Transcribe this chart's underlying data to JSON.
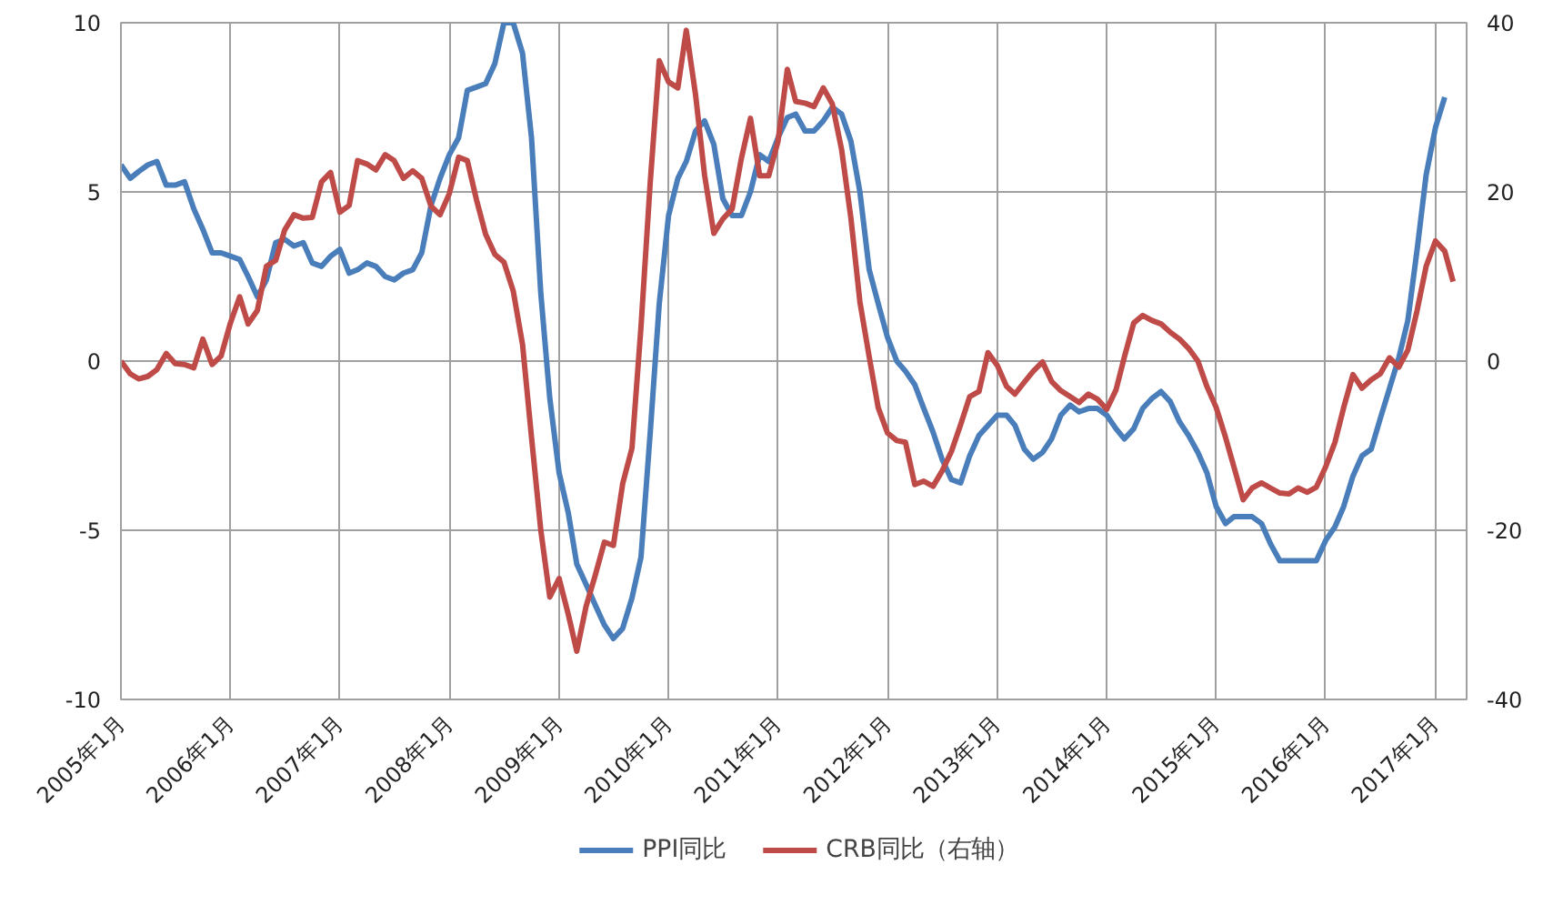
{
  "chart_data": {
    "type": "line",
    "x": [
      "2005-01",
      "2005-02",
      "2005-03",
      "2005-04",
      "2005-05",
      "2005-06",
      "2005-07",
      "2005-08",
      "2005-09",
      "2005-10",
      "2005-11",
      "2005-12",
      "2006-01",
      "2006-02",
      "2006-03",
      "2006-04",
      "2006-05",
      "2006-06",
      "2006-07",
      "2006-08",
      "2006-09",
      "2006-10",
      "2006-11",
      "2006-12",
      "2007-01",
      "2007-02",
      "2007-03",
      "2007-04",
      "2007-05",
      "2007-06",
      "2007-07",
      "2007-08",
      "2007-09",
      "2007-10",
      "2007-11",
      "2007-12",
      "2008-01",
      "2008-02",
      "2008-03",
      "2008-04",
      "2008-05",
      "2008-06",
      "2008-07",
      "2008-08",
      "2008-09",
      "2008-10",
      "2008-11",
      "2008-12",
      "2009-01",
      "2009-02",
      "2009-03",
      "2009-04",
      "2009-05",
      "2009-06",
      "2009-07",
      "2009-08",
      "2009-09",
      "2009-10",
      "2009-11",
      "2009-12",
      "2010-01",
      "2010-02",
      "2010-03",
      "2010-04",
      "2010-05",
      "2010-06",
      "2010-07",
      "2010-08",
      "2010-09",
      "2010-10",
      "2010-11",
      "2010-12",
      "2011-01",
      "2011-02",
      "2011-03",
      "2011-04",
      "2011-05",
      "2011-06",
      "2011-07",
      "2011-08",
      "2011-09",
      "2011-10",
      "2011-11",
      "2011-12",
      "2012-01",
      "2012-02",
      "2012-03",
      "2012-04",
      "2012-05",
      "2012-06",
      "2012-07",
      "2012-08",
      "2012-09",
      "2012-10",
      "2012-11",
      "2012-12",
      "2013-01",
      "2013-02",
      "2013-03",
      "2013-04",
      "2013-05",
      "2013-06",
      "2013-07",
      "2013-08",
      "2013-09",
      "2013-10",
      "2013-11",
      "2013-12",
      "2014-01",
      "2014-02",
      "2014-03",
      "2014-04",
      "2014-05",
      "2014-06",
      "2014-07",
      "2014-08",
      "2014-09",
      "2014-10",
      "2014-11",
      "2014-12",
      "2015-01",
      "2015-02",
      "2015-03",
      "2015-04",
      "2015-05",
      "2015-06",
      "2015-07",
      "2015-08",
      "2015-09",
      "2015-10",
      "2015-11",
      "2015-12",
      "2016-01",
      "2016-02",
      "2016-03",
      "2016-04",
      "2016-05",
      "2016-06",
      "2016-07",
      "2016-08",
      "2016-09",
      "2016-10",
      "2016-11",
      "2016-12",
      "2017-01",
      "2017-02",
      "2017-03"
    ],
    "xlim": [
      "2005-01",
      "2017-04-15"
    ],
    "xticks": [
      {
        "value": "2005-01",
        "label": "2005年1月"
      },
      {
        "value": "2006-01",
        "label": "2006年1月"
      },
      {
        "value": "2007-01",
        "label": "2007年1月"
      },
      {
        "value": "2008-01",
        "label": "2008年1月"
      },
      {
        "value": "2009-01",
        "label": "2009年1月"
      },
      {
        "value": "2010-01",
        "label": "2010年1月"
      },
      {
        "value": "2011-01",
        "label": "2011年1月"
      },
      {
        "value": "2012-01",
        "label": "2012年1月"
      },
      {
        "value": "2013-01",
        "label": "2013年1月"
      },
      {
        "value": "2014-01",
        "label": "2014年1月"
      },
      {
        "value": "2015-01",
        "label": "2015年1月"
      },
      {
        "value": "2016-01",
        "label": "2016年1月"
      },
      {
        "value": "2017-01",
        "label": "2017年1月"
      }
    ],
    "ylim": [
      -10,
      10
    ],
    "yticks": [
      -10,
      -5,
      0,
      5,
      10
    ],
    "y2lim": [
      -40,
      40
    ],
    "y2ticks": [
      -40,
      -20,
      0,
      20,
      40
    ],
    "grid": true,
    "legend": "bottom",
    "marker": "none",
    "line_style": "solid",
    "series": [
      {
        "name": "PPI同比",
        "color": "#4a7ebb",
        "values": [
          5.8,
          5.4,
          5.6,
          5.8,
          5.9,
          5.2,
          5.2,
          5.3,
          4.5,
          3.9,
          3.2,
          3.2,
          3.1,
          3.0,
          2.5,
          1.9,
          2.4,
          3.5,
          3.6,
          3.4,
          3.5,
          2.9,
          2.8,
          3.1,
          3.3,
          2.6,
          2.7,
          2.9,
          2.8,
          2.5,
          2.4,
          2.6,
          2.7,
          3.2,
          4.6,
          5.4,
          6.1,
          6.6,
          8.0,
          8.1,
          8.2,
          8.8,
          10.0,
          10.0,
          9.1,
          6.6,
          2.0,
          -1.1,
          -3.3,
          -4.5,
          -6.0,
          -6.6,
          -7.2,
          -7.8,
          -8.2,
          -7.9,
          -7.0,
          -5.8,
          -2.1,
          1.7,
          4.3,
          5.4,
          5.9,
          6.8,
          7.1,
          6.4,
          4.8,
          4.3,
          4.3,
          5.0,
          6.1,
          5.9,
          6.6,
          7.2,
          7.3,
          6.8,
          6.8,
          7.1,
          7.5,
          7.3,
          6.5,
          5.0,
          2.7,
          1.7,
          0.7,
          0.0,
          -0.3,
          -0.7,
          -1.4,
          -2.1,
          -2.9,
          -3.5,
          -3.6,
          -2.8,
          -2.2,
          -1.9,
          -1.6,
          -1.6,
          -1.9,
          -2.6,
          -2.9,
          -2.7,
          -2.3,
          -1.6,
          -1.3,
          -1.5,
          -1.4,
          -1.4,
          -1.6,
          -2.0,
          -2.3,
          -2.0,
          -1.4,
          -1.1,
          -0.9,
          -1.2,
          -1.8,
          -2.2,
          -2.7,
          -3.3,
          -4.3,
          -4.8,
          -4.6,
          -4.6,
          -4.6,
          -4.8,
          -5.4,
          -5.9,
          -5.9,
          -5.9,
          -5.9,
          -5.9,
          -5.3,
          -4.9,
          -4.3,
          -3.4,
          -2.8,
          -2.6,
          -1.7,
          -0.8,
          0.1,
          1.2,
          3.3,
          5.5,
          6.9,
          7.8,
          null
        ]
      },
      {
        "name": "CRB同比（右轴）",
        "color": "#be4b48",
        "axis": "y2",
        "values": [
          0,
          -1.5,
          -2.1,
          -1.8,
          -1.0,
          0.9,
          -0.3,
          -0.4,
          -0.8,
          2.6,
          -0.4,
          0.6,
          4.5,
          7.6,
          4.4,
          6.0,
          11.2,
          11.9,
          15.5,
          17.3,
          16.9,
          17.0,
          21.2,
          22.3,
          17.6,
          18.4,
          23.7,
          23.3,
          22.6,
          24.4,
          23.7,
          21.6,
          22.5,
          21.6,
          18.3,
          17.3,
          19.8,
          24.1,
          23.7,
          19.0,
          15.0,
          12.6,
          11.7,
          8.3,
          2.0,
          -9.0,
          -20.0,
          -27.9,
          -25.7,
          -30.0,
          -34.3,
          -29.0,
          -25.4,
          -21.4,
          -21.8,
          -14.5,
          -10.3,
          4.0,
          21.2,
          35.5,
          33.0,
          32.3,
          39.1,
          31.5,
          22.0,
          15.1,
          16.8,
          18.0,
          24.0,
          28.7,
          21.9,
          21.9,
          26.0,
          34.5,
          30.7,
          30.5,
          30.1,
          32.3,
          30.4,
          25.0,
          16.9,
          7.0,
          0.5,
          -5.5,
          -8.5,
          -9.4,
          -9.6,
          -14.6,
          -14.2,
          -14.8,
          -13.0,
          -10.7,
          -7.5,
          -4.2,
          -3.6,
          1.0,
          -0.5,
          -3.0,
          -3.9,
          -2.5,
          -1.2,
          -0.1,
          -2.4,
          -3.5,
          -4.2,
          -4.9,
          -3.9,
          -4.5,
          -5.7,
          -3.4,
          0.5,
          4.5,
          5.4,
          4.8,
          4.4,
          3.4,
          2.6,
          1.5,
          0.0,
          -3.0,
          -5.5,
          -9.0,
          -12.5,
          -16.4,
          -15.0,
          -14.4,
          -15.0,
          -15.6,
          -15.7,
          -15.0,
          -15.5,
          -14.9,
          -12.5,
          -9.6,
          -5.5,
          -1.6,
          -3.2,
          -2.2,
          -1.5,
          0.4,
          -0.7,
          1.3,
          6.0,
          11.2,
          14.2,
          13.0,
          9.4
        ]
      }
    ]
  }
}
